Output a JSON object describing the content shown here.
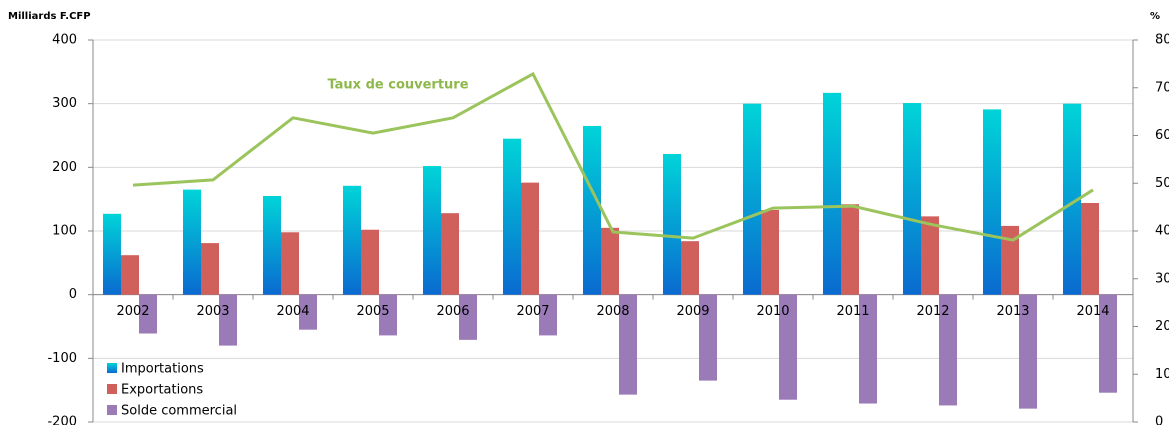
{
  "chart_data": {
    "type": "bar-line",
    "y_label": "Milliards F.CFP",
    "y2_label": "%",
    "annotation": "Taux de couverture",
    "categories": [
      "2002",
      "2003",
      "2004",
      "2005",
      "2006",
      "2007",
      "2008",
      "2009",
      "2010",
      "2011",
      "2012",
      "2013",
      "2014"
    ],
    "series": [
      {
        "name": "Importations",
        "color": "#00d4d8",
        "type": "bar",
        "values": [
          127,
          165,
          155,
          171,
          202,
          245,
          265,
          221,
          300,
          317,
          301,
          291,
          300
        ]
      },
      {
        "name": "Exportations",
        "color": "#d0605c",
        "type": "bar",
        "values": [
          62,
          81,
          98,
          102,
          128,
          176,
          105,
          84,
          133,
          142,
          123,
          108,
          144
        ]
      },
      {
        "name": "Solde commercial",
        "color": "#9a7bb8",
        "type": "bar",
        "values": [
          -61,
          -80,
          -55,
          -64,
          -71,
          -64,
          -157,
          -135,
          -165,
          -171,
          -174,
          -179,
          -154
        ]
      },
      {
        "name": "Taux de couverture",
        "color": "#9bc45c",
        "type": "line",
        "axis": "y2",
        "values": [
          49.6,
          50.7,
          63.7,
          60.5,
          63.7,
          72.9,
          39.8,
          38.5,
          44.8,
          45.2,
          41.3,
          38.1,
          48.6
        ]
      }
    ],
    "ylim": [
      -200,
      400
    ],
    "yticks": [
      -200,
      -100,
      0,
      100,
      200,
      300,
      400
    ],
    "y2lim": [
      0,
      80
    ],
    "y2ticks": [
      0,
      10,
      20,
      30,
      40,
      50,
      60,
      70,
      80
    ],
    "grid": true
  }
}
